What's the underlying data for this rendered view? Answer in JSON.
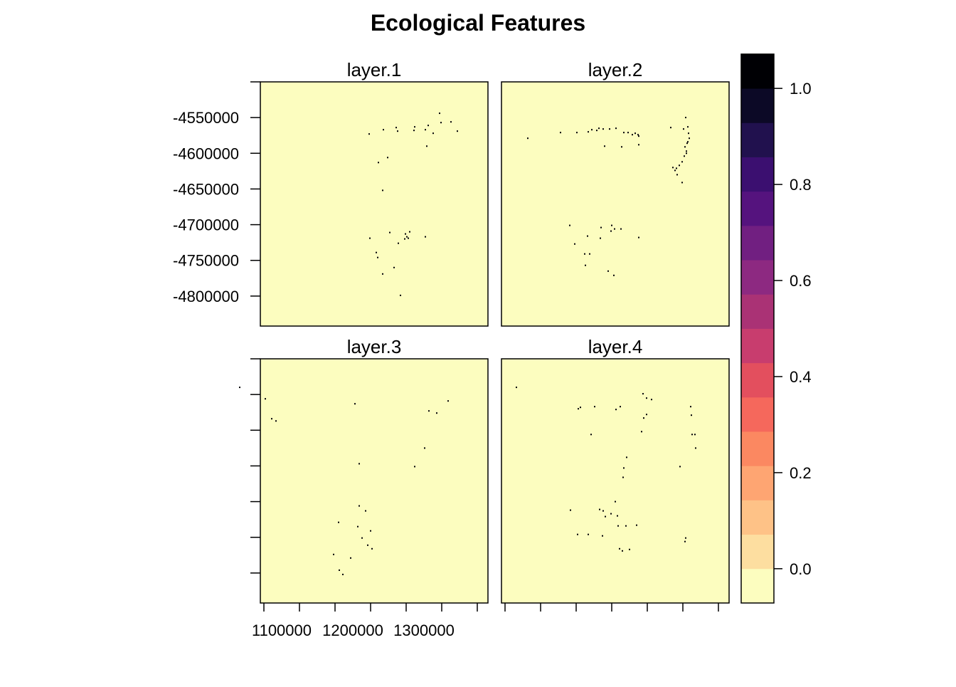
{
  "chart_data": {
    "type": "heatmap",
    "title": "Ecological Features",
    "panels": [
      {
        "name": "layer.1",
        "points": [
          [
            1321000,
            -4543000
          ],
          [
            1323000,
            -4556000
          ],
          [
            1305000,
            -4560000
          ],
          [
            1337000,
            -4555000
          ],
          [
            1346000,
            -4568000
          ],
          [
            1301000,
            -4566000
          ],
          [
            1286000,
            -4562000
          ],
          [
            1312000,
            -4571000
          ],
          [
            1260000,
            -4563000
          ],
          [
            1242000,
            -4566000
          ],
          [
            1262000,
            -4568000
          ],
          [
            1285000,
            -4567000
          ],
          [
            1222000,
            -4572000
          ],
          [
            1303000,
            -4589000
          ],
          [
            1248000,
            -4605000
          ],
          [
            1235000,
            -4612000
          ],
          [
            1241000,
            -4651000
          ],
          [
            1223000,
            -4718000
          ],
          [
            1273000,
            -4712000
          ],
          [
            1275000,
            -4716000
          ],
          [
            1279000,
            -4709000
          ],
          [
            1277000,
            -4718000
          ],
          [
            1272000,
            -4719000
          ],
          [
            1251000,
            -4710000
          ],
          [
            1263000,
            -4725000
          ],
          [
            1232000,
            -4738000
          ],
          [
            1234000,
            -4745000
          ],
          [
            1257000,
            -4759000
          ],
          [
            1241000,
            -4768000
          ],
          [
            1266000,
            -4798000
          ],
          [
            1301000,
            -4716000
          ]
        ]
      },
      {
        "name": "layer.2",
        "points": [
          [
            1328000,
            -4549000
          ],
          [
            1331000,
            -4562000
          ],
          [
            1332000,
            -4571000
          ],
          [
            1325000,
            -4565000
          ],
          [
            1333000,
            -4578000
          ],
          [
            1331000,
            -4583000
          ],
          [
            1327000,
            -4590000
          ],
          [
            1329000,
            -4596000
          ],
          [
            1326000,
            -4603000
          ],
          [
            1323000,
            -4611000
          ],
          [
            1319000,
            -4616000
          ],
          [
            1315000,
            -4620000
          ],
          [
            1313000,
            -4623000
          ],
          [
            1310000,
            -4619000
          ],
          [
            1316000,
            -4629000
          ],
          [
            1323000,
            -4640000
          ],
          [
            1329000,
            -4599000
          ],
          [
            1330000,
            -4585000
          ],
          [
            1307000,
            -4563000
          ],
          [
            1261000,
            -4573000
          ],
          [
            1262000,
            -4575000
          ],
          [
            1257000,
            -4571000
          ],
          [
            1253000,
            -4573000
          ],
          [
            1247000,
            -4570000
          ],
          [
            1241000,
            -4570000
          ],
          [
            1230000,
            -4564000
          ],
          [
            1221000,
            -4565000
          ],
          [
            1212000,
            -4565000
          ],
          [
            1206000,
            -4564000
          ],
          [
            1203000,
            -4567000
          ],
          [
            1196000,
            -4566000
          ],
          [
            1191000,
            -4569000
          ],
          [
            1175000,
            -4570000
          ],
          [
            1262000,
            -4587000
          ],
          [
            1238000,
            -4590000
          ],
          [
            1106000,
            -4578000
          ],
          [
            1214000,
            -4589000
          ],
          [
            1152000,
            -4570000
          ],
          [
            1209000,
            -4703000
          ],
          [
            1208000,
            -4718000
          ],
          [
            1223000,
            -4708000
          ],
          [
            1228000,
            -4705000
          ],
          [
            1172000,
            -4726000
          ],
          [
            1186000,
            -4740000
          ],
          [
            1187000,
            -4756000
          ],
          [
            1193000,
            -4740000
          ],
          [
            1219000,
            -4764000
          ],
          [
            1227000,
            -4770000
          ],
          [
            1262000,
            -4717000
          ],
          [
            1237000,
            -4705000
          ],
          [
            1224000,
            -4700000
          ],
          [
            1190000,
            -4715000
          ],
          [
            1165000,
            -4700000
          ]
        ]
      },
      {
        "name": "layer.3",
        "points": [
          [
            1040000,
            -4539000
          ],
          [
            1076000,
            -4555000
          ],
          [
            1085000,
            -4583000
          ],
          [
            1091000,
            -4586000
          ],
          [
            1306000,
            -4572000
          ],
          [
            1333000,
            -4558000
          ],
          [
            1317000,
            -4575000
          ],
          [
            1202000,
            -4562000
          ],
          [
            1300000,
            -4624000
          ],
          [
            1286000,
            -4650000
          ],
          [
            1208000,
            -4646000
          ],
          [
            1208000,
            -4705000
          ],
          [
            1217000,
            -4712000
          ],
          [
            1179000,
            -4728000
          ],
          [
            1206000,
            -4734000
          ],
          [
            1212000,
            -4750000
          ],
          [
            1224000,
            -4740000
          ],
          [
            1220000,
            -4760000
          ],
          [
            1226000,
            -4765000
          ],
          [
            1172000,
            -4773000
          ],
          [
            1180000,
            -4795000
          ],
          [
            1196000,
            -4778000
          ],
          [
            1185000,
            -4801000
          ]
        ]
      },
      {
        "name": "layer.4",
        "points": [
          [
            1090000,
            -4539000
          ],
          [
            1268000,
            -4548000
          ],
          [
            1273000,
            -4554000
          ],
          [
            1280000,
            -4556000
          ],
          [
            1236000,
            -4566000
          ],
          [
            1269000,
            -4582000
          ],
          [
            1273000,
            -4577000
          ],
          [
            1266000,
            -4601000
          ],
          [
            1335000,
            -4566000
          ],
          [
            1336000,
            -4578000
          ],
          [
            1337000,
            -4605000
          ],
          [
            1341000,
            -4605000
          ],
          [
            1342000,
            -4624000
          ],
          [
            1320000,
            -4650000
          ],
          [
            1245000,
            -4637000
          ],
          [
            1241000,
            -4652000
          ],
          [
            1240000,
            -4665000
          ],
          [
            1200000,
            -4566000
          ],
          [
            1177000,
            -4569000
          ],
          [
            1180000,
            -4567000
          ],
          [
            1195000,
            -4605000
          ],
          [
            1230000,
            -4570000
          ],
          [
            1207000,
            -4710000
          ],
          [
            1212000,
            -4712000
          ],
          [
            1215000,
            -4720000
          ],
          [
            1223000,
            -4716000
          ],
          [
            1229000,
            -4699000
          ],
          [
            1232000,
            -4719000
          ],
          [
            1166000,
            -4711000
          ],
          [
            1176000,
            -4745000
          ],
          [
            1191000,
            -4745000
          ],
          [
            1211000,
            -4747000
          ],
          [
            1233000,
            -4733000
          ],
          [
            1244000,
            -4733000
          ],
          [
            1259000,
            -4732000
          ],
          [
            1235000,
            -4765000
          ],
          [
            1239000,
            -4768000
          ],
          [
            1249000,
            -4766000
          ],
          [
            1327000,
            -4755000
          ],
          [
            1328000,
            -4750000
          ]
        ]
      }
    ],
    "x_ticks": [
      1100000,
      1200000,
      1300000
    ],
    "y_ticks": [
      -4550000,
      -4600000,
      -4650000,
      -4700000,
      -4750000,
      -4800000
    ],
    "xlim": [
      1070000,
      1390000
    ],
    "ylim": [
      -4842000,
      -4500000
    ],
    "colorbar": {
      "range": [
        -0.0714,
        1.0714
      ],
      "ticks": [
        0.0,
        0.2,
        0.4,
        0.6,
        0.8,
        1.0
      ],
      "tick_labels": [
        "0.0",
        "0.2",
        "0.4",
        "0.6",
        "0.8",
        "1.0"
      ],
      "colors": [
        "#FCFDBF",
        "#FDDEA0",
        "#FEC287",
        "#FEA572",
        "#FB8861",
        "#F5685C",
        "#E34F5E",
        "#C83D6E",
        "#AA3275",
        "#8D2981",
        "#711F81",
        "#55137E",
        "#3B0F70",
        "#21114E",
        "#0C0926",
        "#000004"
      ]
    },
    "colors": {
      "background": "#FCFDBF",
      "feature": "#000004"
    },
    "grid": false,
    "legend": "right"
  }
}
